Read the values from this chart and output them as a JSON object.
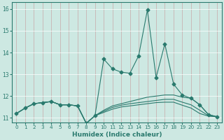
{
  "xlabel": "Humidex (Indice chaleur)",
  "bg_color": "#cde8e2",
  "line_color": "#2a7a6e",
  "grid_color": "#b8d8d2",
  "xlim": [
    -0.5,
    23.5
  ],
  "ylim": [
    10.8,
    16.3
  ],
  "yticks": [
    11,
    12,
    13,
    14,
    15,
    16
  ],
  "xticks": [
    0,
    1,
    2,
    3,
    4,
    5,
    6,
    7,
    8,
    9,
    10,
    11,
    12,
    13,
    14,
    15,
    16,
    17,
    18,
    19,
    20,
    21,
    22,
    23
  ],
  "series": [
    {
      "x": [
        0,
        1,
        2,
        3,
        4,
        5,
        6,
        7,
        8,
        9,
        10,
        11,
        12,
        13,
        14,
        15,
        16,
        17,
        18,
        19,
        20,
        21,
        22,
        23
      ],
      "y": [
        11.2,
        11.45,
        11.65,
        11.7,
        11.75,
        11.6,
        11.6,
        11.55,
        10.75,
        11.1,
        13.7,
        13.25,
        13.1,
        13.05,
        13.85,
        15.95,
        12.85,
        14.4,
        12.55,
        12.05,
        11.9,
        11.6,
        11.15,
        11.05
      ],
      "marker": true,
      "linewidth": 0.8
    },
    {
      "x": [
        0,
        1,
        2,
        3,
        4,
        5,
        6,
        7,
        8,
        9,
        10,
        11,
        12,
        13,
        14,
        15,
        16,
        17,
        18,
        19,
        20,
        21,
        22,
        23
      ],
      "y": [
        11.2,
        11.45,
        11.65,
        11.7,
        11.75,
        11.6,
        11.6,
        11.55,
        10.75,
        11.1,
        11.35,
        11.55,
        11.65,
        11.75,
        11.85,
        11.95,
        12.0,
        12.05,
        12.05,
        11.95,
        11.9,
        11.6,
        11.15,
        11.05
      ],
      "marker": false,
      "linewidth": 0.8
    },
    {
      "x": [
        0,
        1,
        2,
        3,
        4,
        5,
        6,
        7,
        8,
        9,
        10,
        11,
        12,
        13,
        14,
        15,
        16,
        17,
        18,
        19,
        20,
        21,
        22,
        23
      ],
      "y": [
        11.2,
        11.45,
        11.65,
        11.7,
        11.75,
        11.6,
        11.6,
        11.55,
        10.75,
        11.1,
        11.3,
        11.48,
        11.58,
        11.65,
        11.7,
        11.75,
        11.8,
        11.85,
        11.85,
        11.72,
        11.6,
        11.35,
        11.1,
        11.05
      ],
      "marker": false,
      "linewidth": 0.8
    },
    {
      "x": [
        0,
        1,
        2,
        3,
        4,
        5,
        6,
        7,
        8,
        9,
        10,
        11,
        12,
        13,
        14,
        15,
        16,
        17,
        18,
        19,
        20,
        21,
        22,
        23
      ],
      "y": [
        11.2,
        11.45,
        11.65,
        11.7,
        11.75,
        11.6,
        11.6,
        11.55,
        10.75,
        11.1,
        11.25,
        11.4,
        11.5,
        11.55,
        11.6,
        11.65,
        11.7,
        11.72,
        11.72,
        11.58,
        11.45,
        11.2,
        11.08,
        11.05
      ],
      "marker": false,
      "linewidth": 0.8
    }
  ]
}
